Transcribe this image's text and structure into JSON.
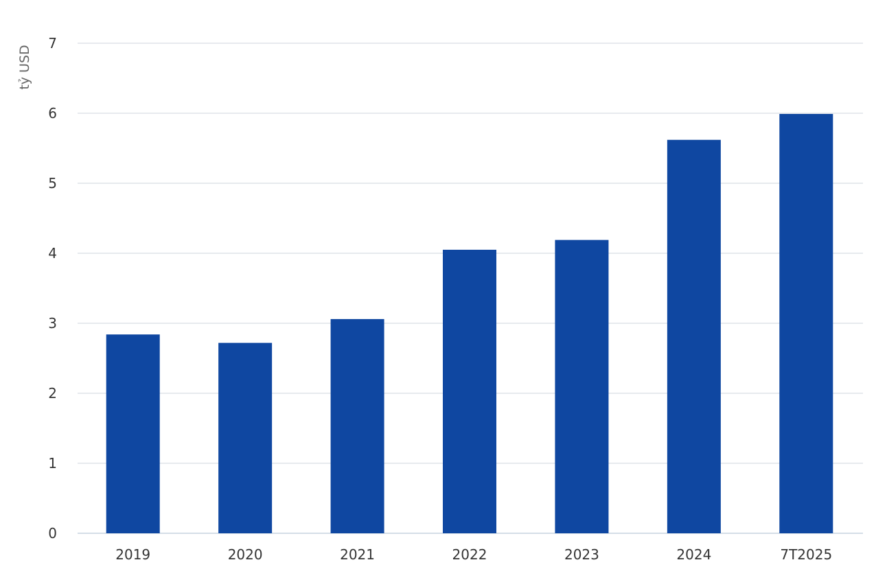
{
  "chart_data": {
    "type": "bar",
    "categories": [
      "2019",
      "2020",
      "2021",
      "2022",
      "2023",
      "2024",
      "7T2025"
    ],
    "values": [
      2.84,
      2.72,
      3.06,
      4.05,
      4.19,
      5.62,
      5.99
    ],
    "ylabel": "tỷ USD",
    "ylim": [
      0,
      7
    ],
    "yticks": [
      0,
      1,
      2,
      3,
      4,
      5,
      6,
      7
    ],
    "grid": true,
    "bar_color": "#0f47a1"
  }
}
